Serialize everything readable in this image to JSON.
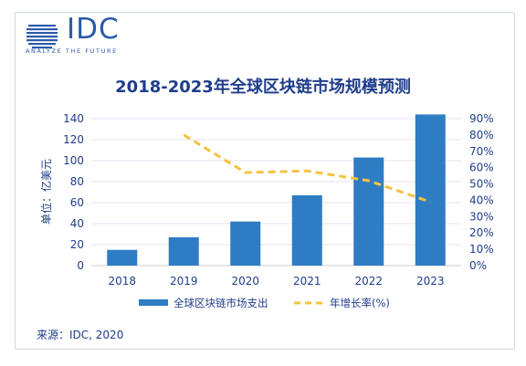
{
  "logo": {
    "text": "IDC",
    "tagline": "ANALYZE THE FUTURE"
  },
  "source": "来源：IDC, 2020",
  "chart_data": {
    "type": "bar",
    "title": "2018-2023年全球区块链市场规模预测",
    "categories": [
      "2018",
      "2019",
      "2020",
      "2021",
      "2022",
      "2023"
    ],
    "ylabel": "单位：亿美元",
    "ylim": [
      0,
      140
    ],
    "yticks": [
      0,
      20,
      40,
      60,
      80,
      100,
      120,
      140
    ],
    "y2lim": [
      0,
      90
    ],
    "y2ticks": [
      "0%",
      "10%",
      "20%",
      "30%",
      "40%",
      "50%",
      "60%",
      "70%",
      "80%",
      "90%"
    ],
    "grid": true,
    "legend_position": "bottom",
    "series": [
      {
        "name": "全球区块链市场支出",
        "type": "bar",
        "axis": "left",
        "color": "#2e7cc4",
        "values": [
          15,
          27,
          42,
          67,
          103,
          144
        ]
      },
      {
        "name": "年增长率(%)",
        "type": "line",
        "axis": "right",
        "color": "#f5c341",
        "dashed": true,
        "values": [
          null,
          80,
          57,
          58,
          52,
          39
        ]
      }
    ]
  }
}
